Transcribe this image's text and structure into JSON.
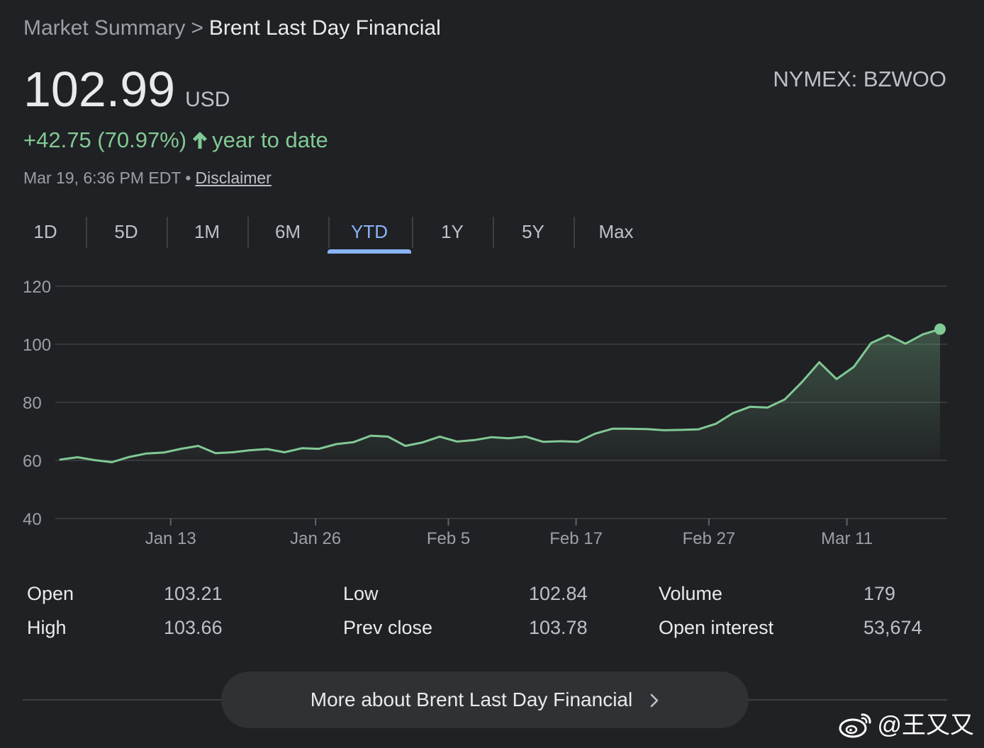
{
  "breadcrumb": {
    "parent": "Market Summary",
    "separator": ">",
    "current": "Brent Last Day Financial"
  },
  "quote": {
    "price": "102.99",
    "currency": "USD",
    "exchange_ticker": "NYMEX: BZWOO",
    "change": "+42.75 (70.97%)",
    "period_label": "year to date",
    "timestamp": "Mar 19, 6:36 PM EDT",
    "dot": "•",
    "disclaimer": "Disclaimer",
    "up_color": "#81c995"
  },
  "tabs": [
    {
      "label": "1D",
      "active": false
    },
    {
      "label": "5D",
      "active": false
    },
    {
      "label": "1M",
      "active": false
    },
    {
      "label": "6M",
      "active": false
    },
    {
      "label": "YTD",
      "active": true
    },
    {
      "label": "1Y",
      "active": false
    },
    {
      "label": "5Y",
      "active": false
    },
    {
      "label": "Max",
      "active": false
    }
  ],
  "chart_data": {
    "type": "area",
    "ylim": [
      40,
      120
    ],
    "y_ticks": [
      40,
      60,
      80,
      100,
      120
    ],
    "x_tick_labels": [
      "Jan 13",
      "Jan 26",
      "Feb 5",
      "Feb 17",
      "Feb 27",
      "Mar 11"
    ],
    "grid": true,
    "line_color": "#81c995",
    "series": [
      {
        "values": [
          60.3,
          61.1,
          60.1,
          59.4,
          61.2,
          62.4,
          62.7,
          64.0,
          65.0,
          62.5,
          62.8,
          63.5,
          63.9,
          62.8,
          64.2,
          64.0,
          65.6,
          66.3,
          68.5,
          68.2,
          65.0,
          66.2,
          68.2,
          66.5,
          67.0,
          68.0,
          67.6,
          68.2,
          66.4,
          66.6,
          66.4,
          69.2,
          70.9,
          70.9,
          70.8,
          70.4,
          70.5,
          70.7,
          72.6,
          76.3,
          78.5,
          78.2,
          81.0,
          87.0,
          93.8,
          88.0,
          92.2,
          100.4,
          103.1,
          100.2,
          103.4,
          105.2
        ]
      }
    ]
  },
  "stats": [
    {
      "label": "Open",
      "value": "103.21"
    },
    {
      "label": "High",
      "value": "103.66"
    },
    {
      "label": "Low",
      "value": "102.84"
    },
    {
      "label": "Prev close",
      "value": "103.78"
    },
    {
      "label": "Volume",
      "value": "179"
    },
    {
      "label": "Open interest",
      "value": "53,674"
    }
  ],
  "more_button": {
    "label": "More about Brent Last Day Financial",
    "icon": "chevron-right-icon"
  },
  "watermark": {
    "text": "@王又又",
    "icon": "weibo-logo"
  }
}
